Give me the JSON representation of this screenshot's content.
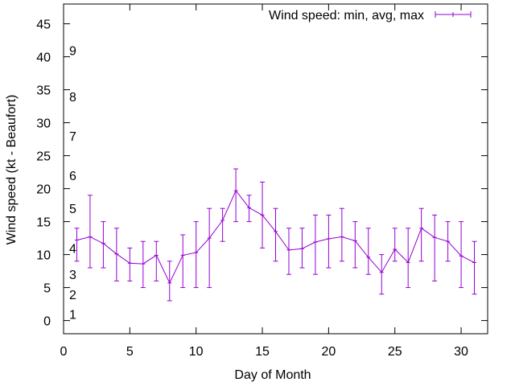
{
  "chart_data": {
    "type": "line",
    "xlabel": "Day of Month",
    "ylabel": "Wind speed (kt - Beaufort)",
    "xlim": [
      0,
      32
    ],
    "ylim": [
      -2,
      48
    ],
    "x_ticks": [
      0,
      5,
      10,
      15,
      20,
      25,
      30
    ],
    "y_ticks": [
      0,
      5,
      10,
      15,
      20,
      25,
      30,
      35,
      40,
      45
    ],
    "grid": false,
    "legend_position": "top-right",
    "beaufort_labels": [
      {
        "label": "1",
        "value": 1
      },
      {
        "label": "2",
        "value": 4
      },
      {
        "label": "3",
        "value": 7
      },
      {
        "label": "4",
        "value": 11
      },
      {
        "label": "5",
        "value": 17
      },
      {
        "label": "6",
        "value": 22
      },
      {
        "label": "7",
        "value": 28
      },
      {
        "label": "8",
        "value": 34
      },
      {
        "label": "9",
        "value": 41
      }
    ],
    "series": [
      {
        "name": "Wind speed: min, avg, max",
        "color": "#9400d3",
        "x": [
          1,
          2,
          3,
          4,
          5,
          6,
          7,
          8,
          9,
          10,
          11,
          12,
          13,
          14,
          15,
          16,
          17,
          18,
          19,
          20,
          21,
          22,
          23,
          24,
          25,
          26,
          27,
          28,
          29,
          30,
          31
        ],
        "avg": [
          12.2,
          12.7,
          11.7,
          10.1,
          8.7,
          8.6,
          9.9,
          5.7,
          9.9,
          10.3,
          12.5,
          15.2,
          19.7,
          17.1,
          16.0,
          13.5,
          10.7,
          10.9,
          11.9,
          12.4,
          12.7,
          12.1,
          9.6,
          7.3,
          10.8,
          8.8,
          14.0,
          12.6,
          12.0,
          9.8,
          8.8
        ],
        "min": [
          9,
          8,
          8,
          6,
          6,
          5,
          6,
          3,
          5,
          5,
          5,
          12,
          15,
          15,
          11,
          9,
          7,
          8,
          7,
          8,
          9,
          8,
          7,
          4,
          9,
          5,
          9,
          6,
          9,
          5,
          4
        ],
        "max": [
          14,
          19,
          15,
          14,
          11,
          12,
          12,
          9,
          13,
          15,
          17,
          17,
          23,
          19,
          21,
          17,
          14,
          14,
          16,
          16,
          17,
          15,
          14,
          10,
          14,
          14,
          17,
          16,
          15,
          15,
          12
        ]
      }
    ]
  }
}
